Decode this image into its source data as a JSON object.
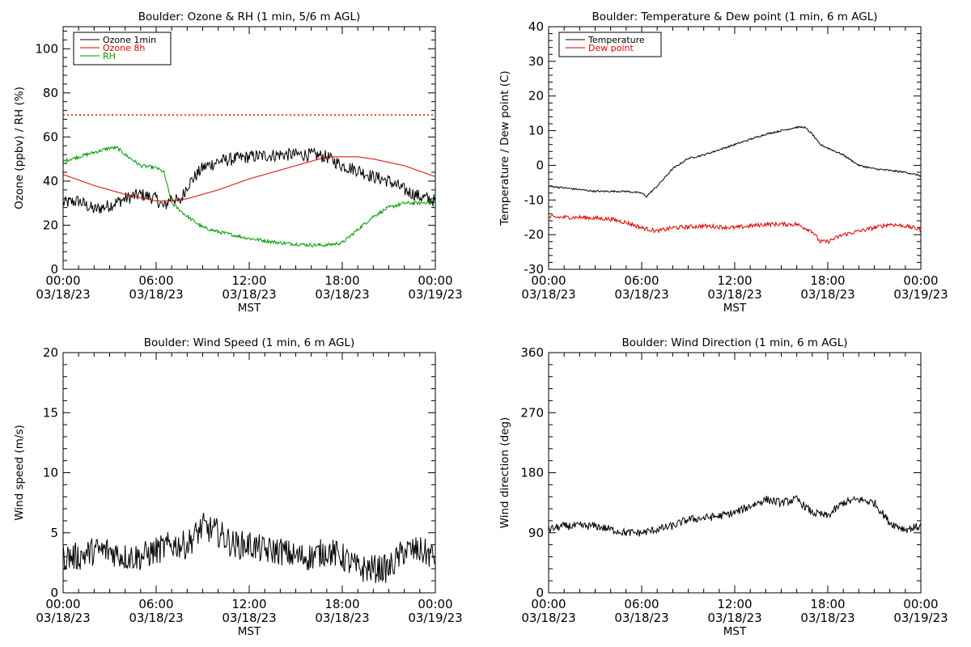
{
  "chart_data": [
    {
      "id": "ozone_rh",
      "type": "line",
      "title": "Boulder: Ozone & RH (1 min, 5/6 m AGL)",
      "xlabel": "MST",
      "ylabel": "Ozone (ppbv) / RH (%)",
      "xticks": [
        "00:00\n03/18/23",
        "06:00\n03/18/23",
        "12:00\n03/18/23",
        "18:00\n03/18/23",
        "00:00\n03/19/23"
      ],
      "xlim_hours": [
        0,
        24
      ],
      "ylim": [
        0,
        110
      ],
      "yticks": [
        0,
        20,
        40,
        60,
        80,
        100
      ],
      "legend": {
        "position": "top-left",
        "entries": [
          "Ozone 1min",
          "Ozone 8h",
          "RH"
        ]
      },
      "hline": {
        "y": 70,
        "color": "#ff0000",
        "style": "dotted"
      },
      "series": [
        {
          "name": "Ozone 1min",
          "color": "#000000",
          "noise": 3.0,
          "x": [
            0,
            1,
            2,
            3,
            4,
            5,
            6,
            6.5,
            7,
            7.5,
            8,
            9,
            10,
            12,
            14,
            16,
            17,
            18,
            19,
            20,
            21,
            22,
            23,
            24
          ],
          "y": [
            30,
            31,
            27,
            29,
            32,
            34,
            32,
            28,
            33,
            30,
            38,
            46,
            49,
            51,
            52,
            52,
            51,
            47,
            45,
            42,
            40,
            36,
            33,
            31
          ]
        },
        {
          "name": "Ozone 8h",
          "color": "#dd0000",
          "noise": 0,
          "x": [
            0,
            2,
            4,
            6,
            7,
            8,
            10,
            12,
            14,
            16,
            17,
            18,
            19,
            20,
            22,
            24
          ],
          "y": [
            43,
            38,
            34,
            31,
            31,
            32,
            36,
            41,
            45,
            49,
            51,
            51,
            51,
            50,
            47,
            42
          ]
        },
        {
          "name": "RH",
          "color": "#009900",
          "noise": 0.8,
          "x": [
            0,
            1,
            2,
            3,
            3.5,
            4,
            5,
            6,
            6.5,
            7,
            8,
            9,
            10,
            12,
            14,
            16,
            17,
            18,
            19,
            20,
            21,
            22,
            23,
            24
          ],
          "y": [
            49,
            51,
            53,
            55,
            55,
            52,
            47,
            46,
            44,
            30,
            24,
            19,
            17,
            14,
            12,
            11,
            11,
            12,
            18,
            24,
            28,
            30,
            30,
            31
          ]
        }
      ]
    },
    {
      "id": "temp_dew",
      "type": "line",
      "title": "Boulder: Temperature & Dew point (1 min, 6 m AGL)",
      "xlabel": "MST",
      "ylabel": "Temperature / Dew point (C)",
      "xticks": [
        "00:00\n03/18/23",
        "06:00\n03/18/23",
        "12:00\n03/18/23",
        "18:00\n03/18/23",
        "00:00\n03/19/23"
      ],
      "xlim_hours": [
        0,
        24
      ],
      "ylim": [
        -30,
        40
      ],
      "yticks": [
        -30,
        -20,
        -10,
        0,
        10,
        20,
        30,
        40
      ],
      "legend": {
        "position": "top-left",
        "entries": [
          "Temperature",
          "Dew point"
        ]
      },
      "series": [
        {
          "name": "Temperature",
          "color": "#000000",
          "noise": 0.25,
          "x": [
            0,
            1,
            2,
            3,
            4,
            5,
            6,
            6.3,
            7,
            8,
            9,
            10,
            12,
            14,
            15,
            16,
            16.5,
            17,
            17.5,
            18,
            19,
            20,
            21,
            22,
            23,
            24
          ],
          "y": [
            -6,
            -6.5,
            -7,
            -7.5,
            -7.5,
            -7.5,
            -8,
            -9,
            -6,
            -1,
            2,
            3,
            6,
            9,
            10,
            11,
            11,
            9,
            6,
            5,
            3,
            0,
            -1,
            -1.5,
            -2,
            -3
          ]
        },
        {
          "name": "Dew point",
          "color": "#dd0000",
          "noise": 0.6,
          "x": [
            0,
            2,
            4,
            5,
            6,
            7,
            8,
            10,
            12,
            14,
            16,
            17,
            17.5,
            18,
            19,
            20,
            21,
            22,
            23,
            24
          ],
          "y": [
            -15,
            -15,
            -15.5,
            -16.5,
            -18,
            -19,
            -18,
            -17.5,
            -18,
            -17,
            -17,
            -19,
            -22,
            -22,
            -20,
            -19,
            -18,
            -17,
            -17.5,
            -18.5
          ]
        }
      ]
    },
    {
      "id": "wind_speed",
      "type": "line",
      "title": "Boulder: Wind Speed (1 min, 6 m AGL)",
      "xlabel": "MST",
      "ylabel": "Wind speed (m/s)",
      "xticks": [
        "00:00\n03/18/23",
        "06:00\n03/18/23",
        "12:00\n03/18/23",
        "18:00\n03/18/23",
        "00:00\n03/19/23"
      ],
      "xlim_hours": [
        0,
        24
      ],
      "ylim": [
        0,
        20
      ],
      "yticks": [
        0,
        5,
        10,
        15,
        20
      ],
      "series": [
        {
          "name": "Wind speed",
          "color": "#000000",
          "noise": 1.2,
          "x": [
            0,
            1,
            2,
            3,
            4,
            5,
            6,
            7,
            8,
            9,
            10,
            11,
            12,
            13,
            14,
            15,
            16,
            17,
            18,
            19,
            20,
            21,
            22,
            23,
            24
          ],
          "y": [
            3,
            3,
            3.5,
            3.5,
            3,
            3,
            3.5,
            4,
            4,
            5.5,
            5,
            4,
            4,
            3.5,
            3.5,
            3,
            3,
            3.5,
            3,
            2,
            2,
            2,
            3.5,
            3.5,
            3
          ]
        }
      ]
    },
    {
      "id": "wind_dir",
      "type": "line",
      "title": "Boulder: Wind Direction (1 min, 6 m AGL)",
      "xlabel": "MST",
      "ylabel": "Wind direction (deg)",
      "xticks": [
        "00:00\n03/18/23",
        "06:00\n03/18/23",
        "12:00\n03/18/23",
        "18:00\n03/18/23",
        "00:00\n03/19/23"
      ],
      "xlim_hours": [
        0,
        24
      ],
      "ylim": [
        0,
        360
      ],
      "yticks": [
        0,
        90,
        180,
        270,
        360
      ],
      "series": [
        {
          "name": "Wind direction",
          "color": "#000000",
          "noise": 6,
          "x": [
            0,
            1,
            2,
            3,
            4,
            5,
            6,
            7,
            8,
            9,
            10,
            11,
            12,
            13,
            14,
            15,
            16,
            17,
            18,
            19,
            20,
            21,
            22,
            23,
            24
          ],
          "y": [
            95,
            100,
            100,
            100,
            95,
            90,
            90,
            95,
            100,
            110,
            112,
            115,
            120,
            130,
            140,
            135,
            140,
            120,
            115,
            135,
            140,
            135,
            105,
            95,
            100
          ]
        }
      ]
    }
  ]
}
